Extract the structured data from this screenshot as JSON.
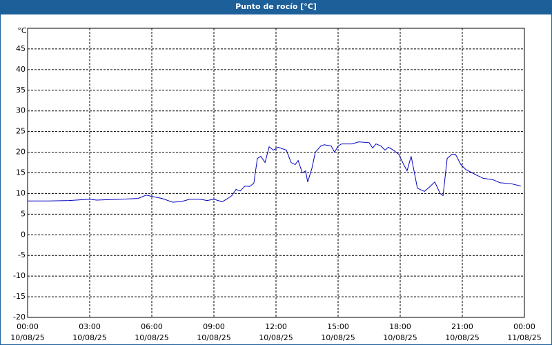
{
  "chart_data": {
    "type": "line",
    "title": "Punto de rocío [°C]",
    "y_unit": "°C",
    "ylim": [
      -20,
      50
    ],
    "yticks": [
      -20,
      -15,
      -10,
      -5,
      0,
      5,
      10,
      15,
      20,
      25,
      30,
      35,
      40,
      45
    ],
    "xlim": [
      0,
      24
    ],
    "xticks": [
      {
        "value": 0,
        "label": "00:00",
        "date": "10/08/25"
      },
      {
        "value": 3,
        "label": "03:00",
        "date": "10/08/25"
      },
      {
        "value": 6,
        "label": "06:00",
        "date": "10/08/25"
      },
      {
        "value": 9,
        "label": "09:00",
        "date": "10/08/25"
      },
      {
        "value": 12,
        "label": "12:00",
        "date": "10/08/25"
      },
      {
        "value": 15,
        "label": "15:00",
        "date": "10/08/25"
      },
      {
        "value": 18,
        "label": "18:00",
        "date": "10/08/25"
      },
      {
        "value": 21,
        "label": "21:00",
        "date": "10/08/25"
      },
      {
        "value": 24,
        "label": "00:00",
        "date": "11/08/25"
      }
    ],
    "grid": true,
    "x": [
      0,
      1,
      2,
      3,
      3.33,
      4.5,
      5.33,
      5.73,
      6,
      6.5,
      7,
      7.4,
      7.83,
      8.33,
      8.67,
      9,
      9.4,
      9.67,
      9.87,
      10.07,
      10.27,
      10.5,
      10.73,
      10.93,
      11.1,
      11.27,
      11.47,
      11.67,
      11.87,
      12.1,
      12.5,
      12.73,
      12.93,
      13.07,
      13.27,
      13.43,
      13.53,
      13.73,
      13.9,
      14.17,
      14.33,
      14.67,
      14.83,
      15,
      15.17,
      15.67,
      16,
      16.5,
      16.67,
      16.83,
      17.07,
      17.27,
      17.43,
      17.67,
      17.93,
      18.17,
      18.33,
      18.53,
      18.83,
      19.17,
      19.4,
      19.67,
      19.93,
      20.07,
      20.27,
      20.5,
      20.67,
      20.93,
      21.17,
      21.67,
      22,
      22.5,
      22.83,
      23.33,
      23.83
    ],
    "series": [
      {
        "color": "#0000c0",
        "values": [
          8.2,
          8.2,
          8.3,
          8.6,
          8.4,
          8.6,
          8.8,
          9.6,
          9.3,
          8.8,
          7.9,
          8.0,
          8.6,
          8.6,
          8.3,
          8.6,
          8.0,
          8.8,
          9.5,
          11.0,
          10.6,
          11.8,
          11.7,
          12.5,
          18.5,
          19.0,
          17.5,
          21.3,
          20.5,
          21.2,
          20.5,
          17.5,
          17.0,
          18.0,
          15.0,
          15.5,
          12.8,
          16.0,
          20.0,
          21.5,
          21.8,
          21.5,
          20.0,
          21.5,
          22.0,
          22.0,
          22.5,
          22.3,
          21.0,
          22.0,
          21.5,
          20.5,
          21.2,
          20.5,
          19.5,
          17.0,
          15.5,
          19.0,
          11.3,
          10.5,
          11.5,
          12.8,
          10.0,
          9.5,
          18.5,
          19.5,
          19.5,
          17.0,
          15.8,
          14.5,
          13.7,
          13.3,
          12.6,
          12.4,
          11.8
        ]
      }
    ]
  }
}
